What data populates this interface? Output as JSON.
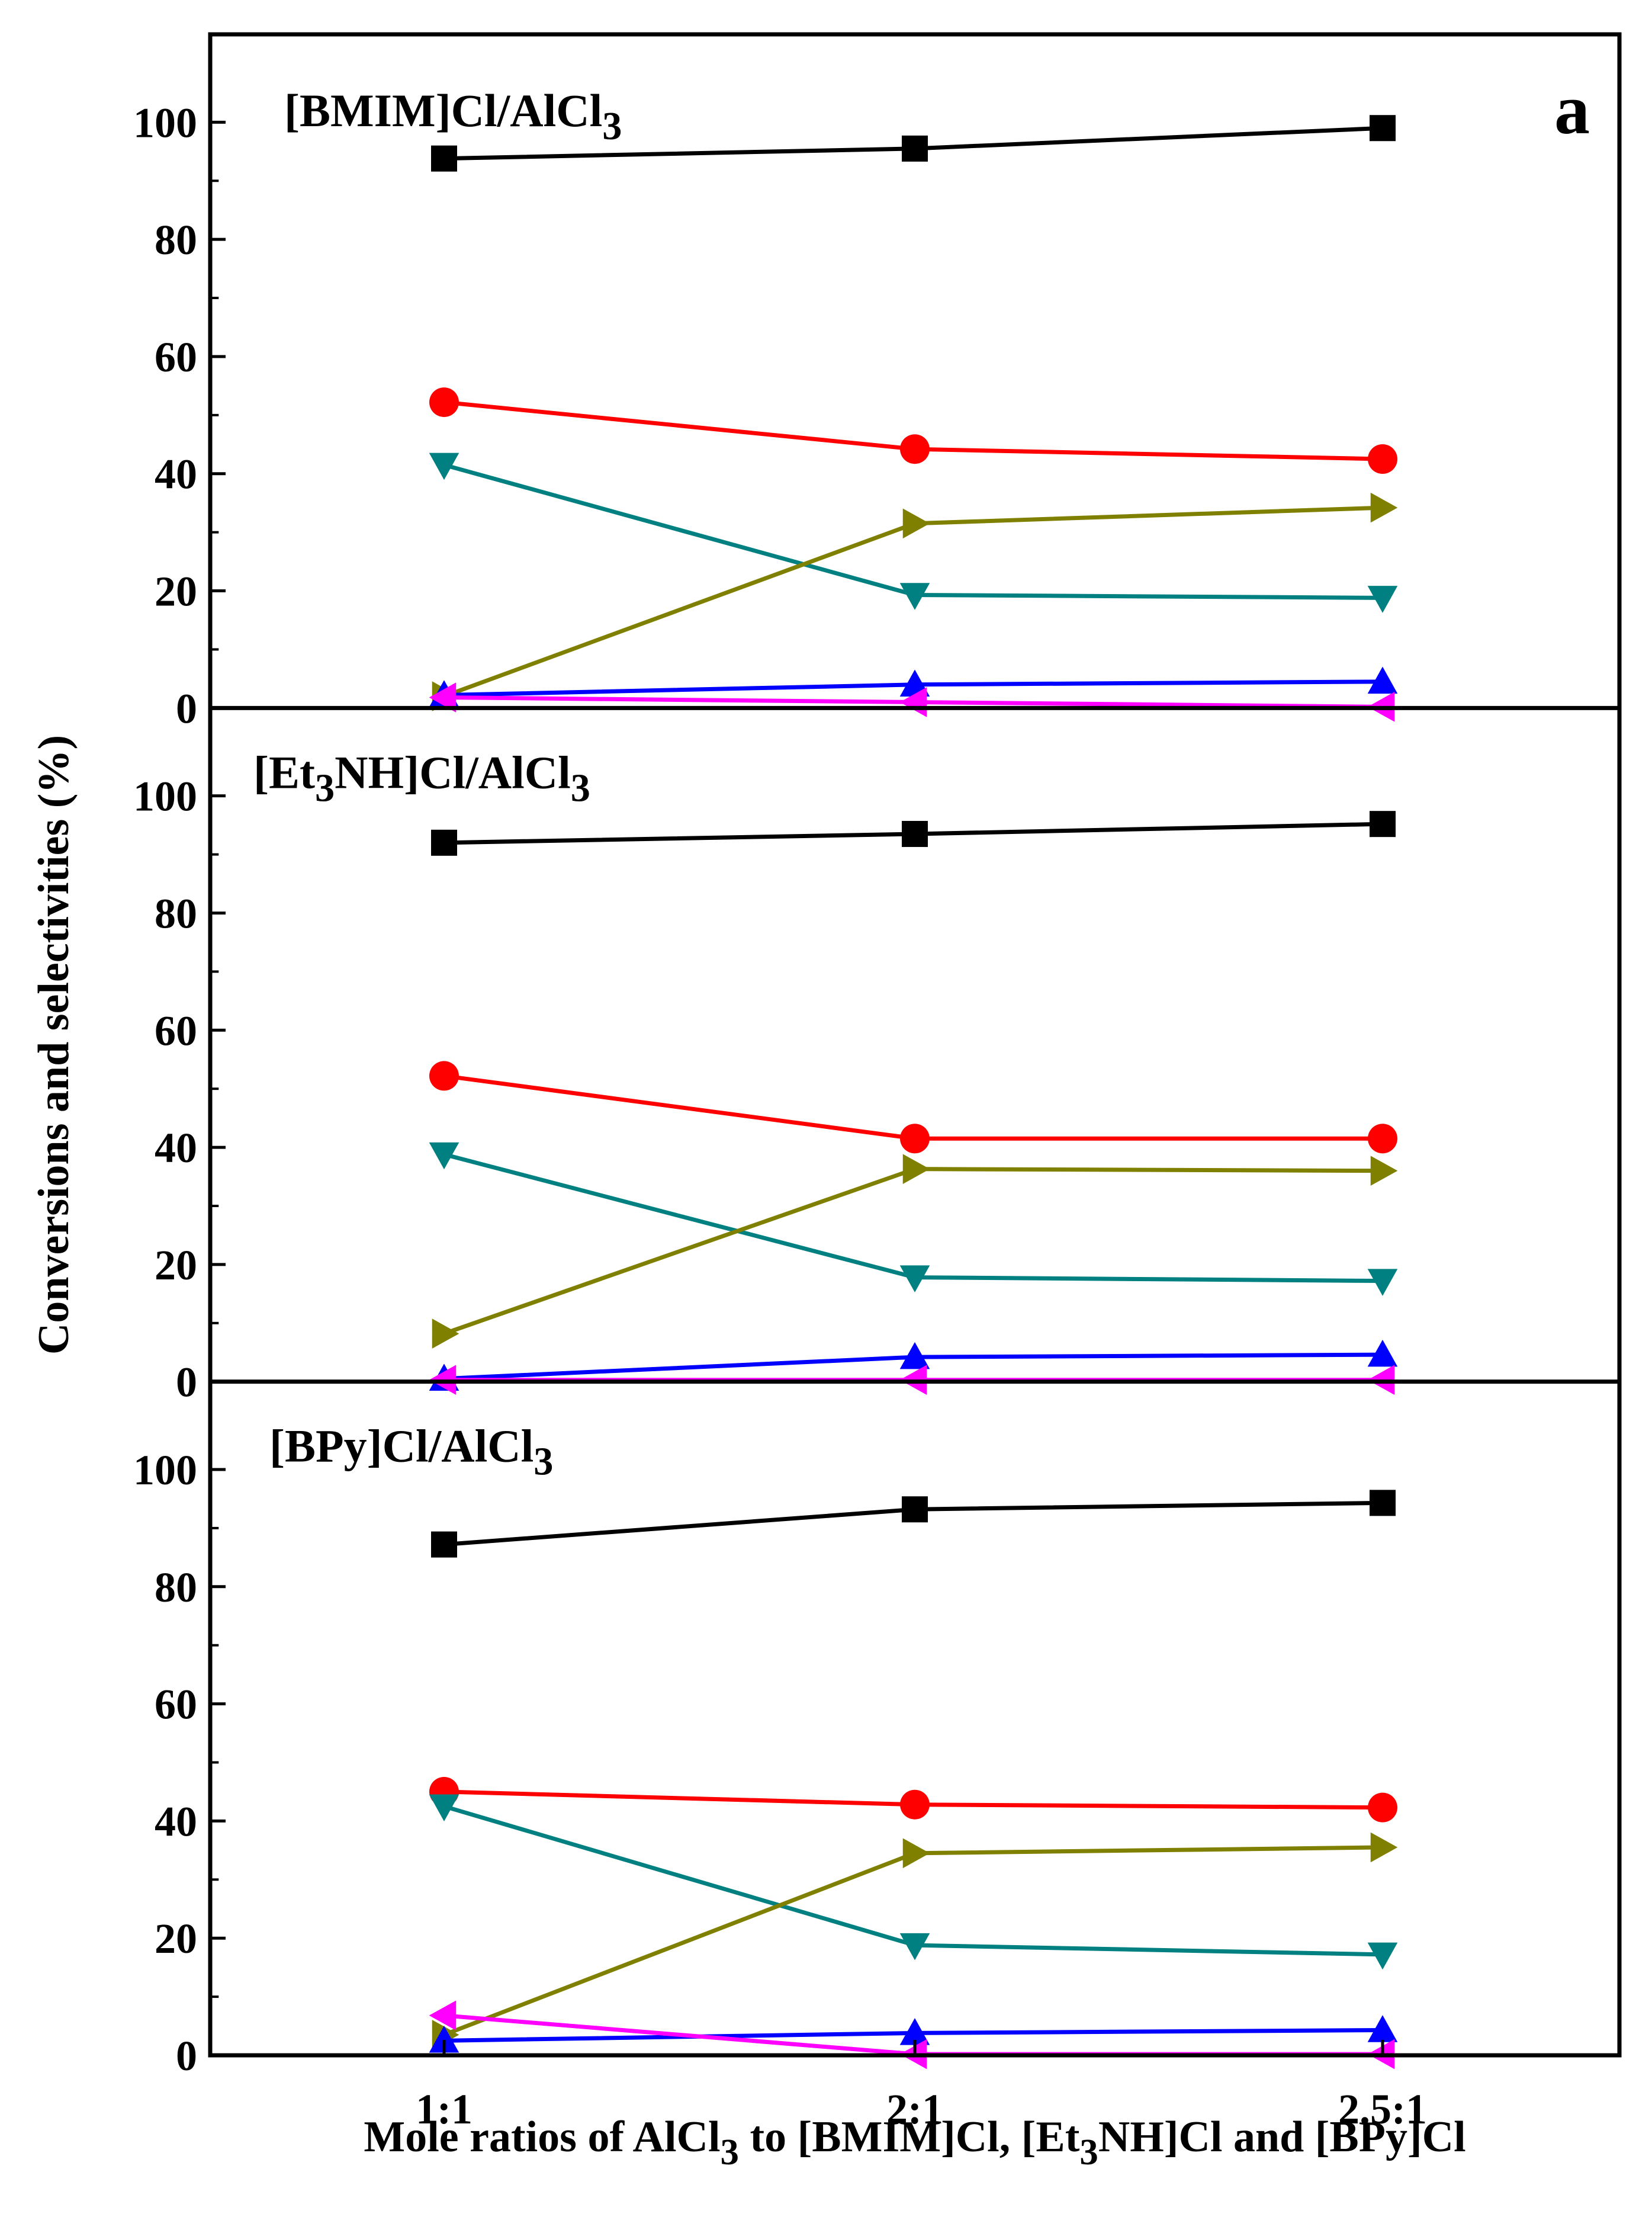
{
  "chart_data": {
    "type": "line",
    "panel_letter": "a",
    "ylabel": "Conversions and selectivities (%)",
    "xlabel": {
      "parts": [
        {
          "text": "Mole ratios of AlCl",
          "sub": false
        },
        {
          "text": "3",
          "sub": true
        },
        {
          "text": " to [BMIM]Cl, [Et",
          "sub": false
        },
        {
          "text": "3",
          "sub": true
        },
        {
          "text": "NH]Cl and [BPy]Cl",
          "sub": false
        }
      ]
    },
    "categories": [
      "1:1",
      "2:1",
      "2.5:1"
    ],
    "yticks": [
      0,
      20,
      40,
      60,
      80,
      100
    ],
    "ylim": [
      0,
      115
    ],
    "panels": [
      {
        "title": {
          "parts": [
            {
              "text": "[BMIM]Cl/AlCl",
              "sub": false
            },
            {
              "text": "3",
              "sub": true
            }
          ]
        },
        "series": [
          {
            "color": "#000000",
            "marker": "square",
            "values": [
              93.8,
              95.5,
              99.0
            ]
          },
          {
            "color": "#ff0000",
            "marker": "circle",
            "values": [
              52.2,
              44.2,
              42.5
            ]
          },
          {
            "color": "#008080",
            "marker": "triangle-down",
            "values": [
              41.5,
              19.3,
              18.8
            ]
          },
          {
            "color": "#808000",
            "marker": "triangle-right",
            "values": [
              2.0,
              31.5,
              34.2
            ]
          },
          {
            "color": "#0000ff",
            "marker": "triangle-up",
            "values": [
              2.2,
              4.0,
              4.5
            ]
          },
          {
            "color": "#ff00ff",
            "marker": "triangle-left",
            "values": [
              1.8,
              1.0,
              0.2
            ]
          }
        ]
      },
      {
        "title": {
          "parts": [
            {
              "text": "[Et",
              "sub": false
            },
            {
              "text": "3",
              "sub": true
            },
            {
              "text": "NH]Cl/AlCl",
              "sub": false
            },
            {
              "text": "3",
              "sub": true
            }
          ]
        },
        "series": [
          {
            "color": "#000000",
            "marker": "square",
            "values": [
              92.0,
              93.5,
              95.2
            ]
          },
          {
            "color": "#ff0000",
            "marker": "circle",
            "values": [
              52.2,
              41.5,
              41.5
            ]
          },
          {
            "color": "#008080",
            "marker": "triangle-down",
            "values": [
              38.8,
              17.8,
              17.2
            ]
          },
          {
            "color": "#808000",
            "marker": "triangle-right",
            "values": [
              8.2,
              36.3,
              36.0
            ]
          },
          {
            "color": "#0000ff",
            "marker": "triangle-up",
            "values": [
              0.5,
              4.2,
              4.6
            ]
          },
          {
            "color": "#ff00ff",
            "marker": "triangle-left",
            "values": [
              0.3,
              0.3,
              0.3
            ]
          }
        ]
      },
      {
        "title": {
          "parts": [
            {
              "text": "[BPy]Cl/AlCl",
              "sub": false
            },
            {
              "text": "3",
              "sub": true
            }
          ]
        },
        "series": [
          {
            "color": "#000000",
            "marker": "square",
            "values": [
              87.2,
              93.2,
              94.3
            ]
          },
          {
            "color": "#ff0000",
            "marker": "circle",
            "values": [
              45.0,
              42.8,
              42.3
            ]
          },
          {
            "color": "#008080",
            "marker": "triangle-down",
            "values": [
              42.5,
              18.8,
              17.2
            ]
          },
          {
            "color": "#808000",
            "marker": "triangle-right",
            "values": [
              3.5,
              34.5,
              35.5
            ]
          },
          {
            "color": "#0000ff",
            "marker": "triangle-up",
            "values": [
              2.5,
              3.8,
              4.3
            ]
          },
          {
            "color": "#ff00ff",
            "marker": "triangle-left",
            "values": [
              6.8,
              0.2,
              0.2
            ]
          }
        ]
      }
    ]
  }
}
